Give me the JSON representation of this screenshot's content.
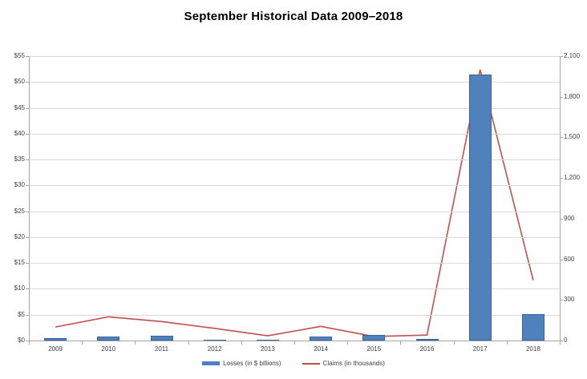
{
  "chart_data": {
    "type": "combo",
    "title": "September Historical Data 2009–2018",
    "categories": [
      "2009",
      "2010",
      "2011",
      "2012",
      "2013",
      "2014",
      "2015",
      "2016",
      "2017",
      "2018"
    ],
    "series": [
      {
        "name": "Losses (in $ billions)",
        "type": "bar",
        "axis": "left",
        "color": "#4f81bd",
        "values": [
          0.5,
          0.8,
          0.9,
          0.2,
          0.1,
          0.75,
          1.1,
          0.25,
          51.5,
          5.1
        ]
      },
      {
        "name": "Claims (in thousands)",
        "type": "line",
        "axis": "right",
        "color": "#c0504d",
        "values": [
          100,
          175,
          140,
          90,
          35,
          105,
          30,
          40,
          2000,
          445
        ]
      }
    ],
    "left_axis": {
      "min": 0,
      "max": 55,
      "step": 5,
      "tick_labels": [
        "$0",
        "$5",
        "$10",
        "$15",
        "$20",
        "$25",
        "$30",
        "$35",
        "$40",
        "$45",
        "$50",
        "$55"
      ]
    },
    "right_axis": {
      "min": 0,
      "max": 2100,
      "step": 300,
      "tick_labels": [
        "0",
        "300",
        "600",
        "900",
        "1,200",
        "1,500",
        "1,800",
        "2,100"
      ]
    },
    "grid": true,
    "legend_position": "bottom"
  }
}
